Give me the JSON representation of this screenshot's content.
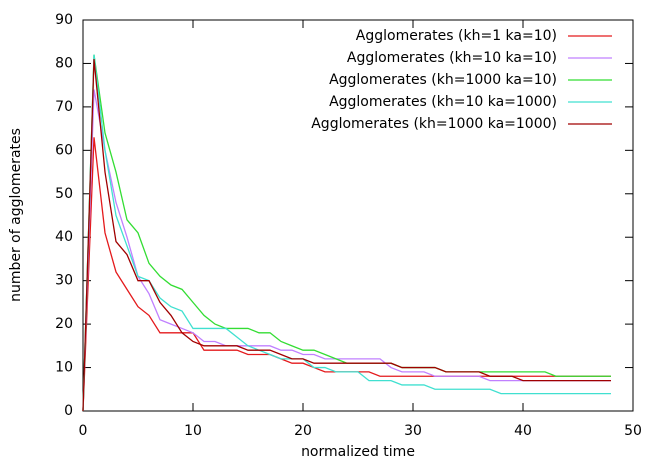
{
  "chart_data": {
    "type": "line",
    "x_label": "normalized time",
    "y_label": "number of agglomerates",
    "x": [
      0,
      1,
      2,
      3,
      4,
      5,
      6,
      7,
      8,
      9,
      10,
      11,
      12,
      13,
      14,
      15,
      16,
      17,
      18,
      19,
      20,
      21,
      22,
      23,
      24,
      25,
      26,
      27,
      28,
      29,
      30,
      31,
      32,
      33,
      34,
      35,
      36,
      37,
      38,
      39,
      40,
      41,
      42,
      43,
      44,
      45,
      46,
      47,
      48
    ],
    "series": [
      {
        "name": "Agglomerates (kh=1 ka=10)",
        "color": "#e41a1c",
        "values": [
          0,
          63,
          41,
          32,
          28,
          24,
          22,
          18,
          18,
          18,
          18,
          14,
          14,
          14,
          14,
          13,
          13,
          13,
          12,
          11,
          11,
          10,
          9,
          9,
          9,
          9,
          9,
          8,
          8,
          8,
          8,
          8,
          8,
          8,
          8,
          8,
          8,
          8,
          8,
          8,
          8,
          8,
          8,
          8,
          8,
          8,
          8,
          8,
          8
        ]
      },
      {
        "name": "Agglomerates (kh=10 ka=10)",
        "color": "#c080ff",
        "values": [
          0,
          74,
          60,
          48,
          40,
          31,
          27,
          21,
          20,
          19,
          18,
          16,
          16,
          15,
          15,
          15,
          15,
          15,
          14,
          14,
          13,
          13,
          12,
          12,
          12,
          12,
          12,
          12,
          10,
          9,
          9,
          9,
          8,
          8,
          8,
          8,
          8,
          7,
          7,
          7,
          7,
          7,
          7,
          7,
          7,
          7,
          7,
          7,
          7
        ]
      },
      {
        "name": "Agglomerates (kh=1000 ka=10)",
        "color": "#33dd33",
        "values": [
          0,
          82,
          64,
          55,
          44,
          41,
          34,
          31,
          29,
          28,
          25,
          22,
          20,
          19,
          19,
          19,
          18,
          18,
          16,
          15,
          14,
          14,
          13,
          12,
          11,
          11,
          11,
          11,
          11,
          10,
          10,
          10,
          10,
          9,
          9,
          9,
          9,
          9,
          9,
          9,
          9,
          9,
          9,
          8,
          8,
          8,
          8,
          8,
          8
        ]
      },
      {
        "name": "Agglomerates (kh=10 ka=1000)",
        "color": "#40e0d0",
        "values": [
          0,
          82,
          60,
          45,
          38,
          31,
          30,
          26,
          24,
          23,
          19,
          19,
          19,
          19,
          17,
          15,
          14,
          13,
          12,
          12,
          12,
          10,
          10,
          9,
          9,
          9,
          7,
          7,
          7,
          6,
          6,
          6,
          5,
          5,
          5,
          5,
          5,
          5,
          4,
          4,
          4,
          4,
          4,
          4,
          4,
          4,
          4,
          4,
          4
        ]
      },
      {
        "name": "Agglomerates (kh=1000 ka=1000)",
        "color": "#a00000",
        "values": [
          0,
          81,
          55,
          39,
          36,
          30,
          30,
          25,
          22,
          18,
          16,
          15,
          15,
          15,
          15,
          14,
          14,
          14,
          13,
          12,
          12,
          11,
          11,
          11,
          11,
          11,
          11,
          11,
          11,
          10,
          10,
          10,
          10,
          9,
          9,
          9,
          9,
          8,
          8,
          8,
          7,
          7,
          7,
          7,
          7,
          7,
          7,
          7,
          7
        ]
      }
    ],
    "xlim": [
      0,
      50
    ],
    "xticks": [
      0,
      10,
      20,
      30,
      40,
      50
    ],
    "ylim": [
      0,
      90
    ],
    "yticks": [
      0,
      10,
      20,
      30,
      40,
      50,
      60,
      70,
      80,
      90
    ],
    "legend": "top-right"
  }
}
